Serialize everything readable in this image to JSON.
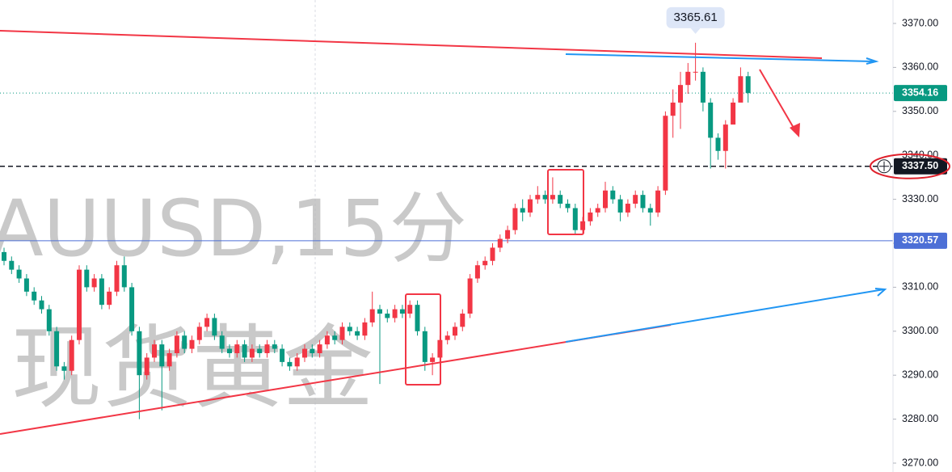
{
  "chart_data": {
    "type": "candlestick",
    "watermark_symbol": "AUUSD,15分",
    "watermark_name": "现货黄金",
    "up_color": "#f23645",
    "down_color": "#089981",
    "ylim": [
      3267.98,
      3375.33
    ],
    "yticks": [
      {
        "value": 3270,
        "label": "3270.00"
      },
      {
        "value": 3280,
        "label": "3280.00"
      },
      {
        "value": 3290,
        "label": "3290.00"
      },
      {
        "value": 3300,
        "label": "3300.00"
      },
      {
        "value": 3310,
        "label": "3310.00"
      },
      {
        "value": 3320,
        "label": "3320.00"
      },
      {
        "value": 3330,
        "label": "3330.00"
      },
      {
        "value": 3340,
        "label": "3340.00"
      },
      {
        "value": 3350,
        "label": "3350.00"
      },
      {
        "value": 3360,
        "label": "3360.00"
      },
      {
        "value": 3370,
        "label": "3370.00"
      }
    ],
    "price_lines": [
      {
        "value": 3337.5,
        "label": "3337.50",
        "color": "#131722"
      },
      {
        "value": 3320.57,
        "label": "3320.57",
        "color": "#4d6fd6"
      }
    ],
    "candles": {
      "open": [
        3318,
        3316,
        3314,
        3312,
        3309,
        3307,
        3305,
        3300,
        3292,
        3291,
        3298,
        3314,
        3310,
        3312,
        3306,
        3309,
        3315,
        3310,
        3300,
        3290,
        3294,
        3297,
        3292,
        3295,
        3299,
        3296,
        3298,
        3301,
        3303,
        3299,
        3296,
        3295,
        3297,
        3294,
        3296,
        3295,
        3297,
        3296,
        3293,
        3292,
        3294,
        3296,
        3295,
        3297,
        3299,
        3298,
        3301,
        3300,
        3299,
        3302,
        3305,
        3304,
        3303,
        3305,
        3304,
        3306,
        3300,
        3293,
        3294,
        3298,
        3299,
        3301,
        3304,
        3312,
        3315,
        3316,
        3319,
        3321,
        3323,
        3328,
        3327,
        3330,
        3331,
        3330,
        3331,
        3329,
        3328,
        3323,
        3325,
        3327,
        3328,
        3332,
        3330,
        3327,
        3329,
        3331,
        3328,
        3327,
        3332,
        3349,
        3352,
        3356,
        3359,
        3359,
        3352,
        3344,
        3341,
        3347,
        3352,
        3358
      ],
      "high": [
        3319,
        3317,
        3315,
        3313,
        3310,
        3308,
        3306,
        3301,
        3293,
        3299,
        3315,
        3315,
        3313,
        3313,
        3310,
        3316,
        3317,
        3311,
        3301,
        3295,
        3298,
        3298,
        3296,
        3300,
        3300,
        3299,
        3302,
        3304,
        3304,
        3300,
        3297,
        3298,
        3298,
        3297,
        3297,
        3298,
        3298,
        3297,
        3294,
        3295,
        3297,
        3297,
        3298,
        3300,
        3300,
        3302,
        3302,
        3301,
        3303,
        3309,
        3306,
        3305,
        3306,
        3306,
        3307,
        3307,
        3301,
        3295,
        3299,
        3300,
        3302,
        3305,
        3313,
        3316,
        3317,
        3320,
        3322,
        3324,
        3329,
        3330,
        3331,
        3333,
        3332,
        3335,
        3332,
        3330,
        3329,
        3326,
        3328,
        3329,
        3334,
        3333,
        3331,
        3330,
        3332,
        3332,
        3329,
        3333,
        3350,
        3355,
        3359,
        3361,
        3365.61,
        3360,
        3353,
        3345,
        3348,
        3353,
        3360,
        3359
      ],
      "low": [
        3315,
        3313,
        3311,
        3308,
        3306,
        3304,
        3299,
        3291,
        3289,
        3290,
        3297,
        3309,
        3309,
        3305,
        3305,
        3308,
        3309,
        3299,
        3280,
        3289,
        3293,
        3282,
        3291,
        3294,
        3295,
        3295,
        3297,
        3300,
        3298,
        3295,
        3294,
        3294,
        3293,
        3293,
        3294,
        3294,
        3295,
        3292,
        3291,
        3291,
        3293,
        3294,
        3294,
        3296,
        3297,
        3297,
        3299,
        3298,
        3298,
        3301,
        3288,
        3302,
        3302,
        3303,
        3303,
        3299,
        3291,
        3290,
        3293,
        3297,
        3298,
        3300,
        3303,
        3311,
        3314,
        3315,
        3318,
        3320,
        3322,
        3325,
        3326,
        3329,
        3329,
        3329,
        3328,
        3327,
        3322,
        3322,
        3324,
        3326,
        3327,
        3329,
        3325,
        3326,
        3328,
        3327,
        3324,
        3326,
        3331,
        3344,
        3346,
        3354,
        3357,
        3350,
        3337,
        3339,
        3337,
        3350,
        3354,
        3352
      ],
      "close": [
        3316,
        3314,
        3312,
        3309,
        3307,
        3305,
        3300,
        3292,
        3291,
        3298,
        3314,
        3310,
        3312,
        3306,
        3309,
        3315,
        3310,
        3300,
        3290,
        3294,
        3297,
        3292,
        3295,
        3299,
        3296,
        3298,
        3301,
        3303,
        3299,
        3296,
        3295,
        3297,
        3294,
        3296,
        3295,
        3297,
        3296,
        3293,
        3292,
        3294,
        3296,
        3295,
        3297,
        3299,
        3298,
        3301,
        3300,
        3299,
        3302,
        3305,
        3304,
        3303,
        3305,
        3304,
        3306,
        3300,
        3293,
        3294,
        3298,
        3299,
        3301,
        3304,
        3312,
        3315,
        3316,
        3319,
        3321,
        3323,
        3328,
        3327,
        3330,
        3331,
        3330,
        3331,
        3329,
        3328,
        3323,
        3325,
        3327,
        3328,
        3332,
        3330,
        3327,
        3329,
        3331,
        3328,
        3327,
        3332,
        3349,
        3352,
        3356,
        3359,
        3359,
        3352,
        3344,
        3341,
        3347,
        3352,
        3358,
        3354.16
      ]
    }
  }
}
